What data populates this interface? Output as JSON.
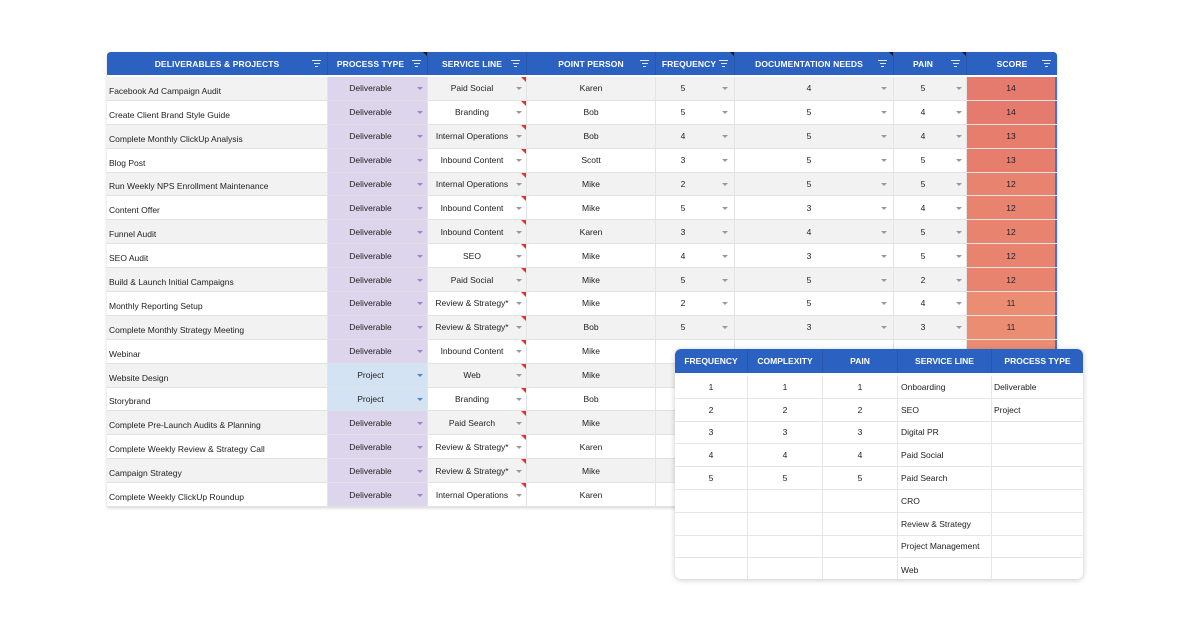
{
  "main_table": {
    "columns": [
      {
        "label": "DELIVERABLES & PROJECTS"
      },
      {
        "label": "PROCESS TYPE"
      },
      {
        "label": "SERVICE LINE"
      },
      {
        "label": "POINT PERSON"
      },
      {
        "label": "FREQUENCY"
      },
      {
        "label": "DOCUMENTATION NEEDS"
      },
      {
        "label": "PAIN"
      },
      {
        "label": "SCORE"
      }
    ],
    "rows": [
      {
        "name": "Facebook Ad Campaign Audit",
        "process_type": "Deliverable",
        "service_line": "Paid Social",
        "point_person": "Karen",
        "frequency": "5",
        "documentation_needs": "4",
        "pain": "5",
        "score": "14",
        "score_color": "#e57a6e"
      },
      {
        "name": "Create Client Brand Style Guide",
        "process_type": "Deliverable",
        "service_line": "Branding",
        "point_person": "Bob",
        "frequency": "5",
        "documentation_needs": "5",
        "pain": "4",
        "score": "14",
        "score_color": "#e57a6e"
      },
      {
        "name": "Complete Monthly ClickUp Analysis",
        "process_type": "Deliverable",
        "service_line": "Internal Operations",
        "point_person": "Bob",
        "frequency": "4",
        "documentation_needs": "5",
        "pain": "4",
        "score": "13",
        "score_color": "#e67d6d"
      },
      {
        "name": "Blog Post",
        "process_type": "Deliverable",
        "service_line": "Inbound Content",
        "point_person": "Scott",
        "frequency": "3",
        "documentation_needs": "5",
        "pain": "5",
        "score": "13",
        "score_color": "#e67d6d"
      },
      {
        "name": "Run Weekly NPS Enrollment Maintenance",
        "process_type": "Deliverable",
        "service_line": "Internal Operations",
        "point_person": "Mike",
        "frequency": "2",
        "documentation_needs": "5",
        "pain": "5",
        "score": "12",
        "score_color": "#e8836f"
      },
      {
        "name": "Content Offer",
        "process_type": "Deliverable",
        "service_line": "Inbound Content",
        "point_person": "Mike",
        "frequency": "5",
        "documentation_needs": "3",
        "pain": "4",
        "score": "12",
        "score_color": "#e8836f"
      },
      {
        "name": "Funnel Audit",
        "process_type": "Deliverable",
        "service_line": "Inbound Content",
        "point_person": "Karen",
        "frequency": "3",
        "documentation_needs": "4",
        "pain": "5",
        "score": "12",
        "score_color": "#e8836f"
      },
      {
        "name": "SEO Audit",
        "process_type": "Deliverable",
        "service_line": "SEO",
        "point_person": "Mike",
        "frequency": "4",
        "documentation_needs": "3",
        "pain": "5",
        "score": "12",
        "score_color": "#e8836f"
      },
      {
        "name": "Build & Launch Initial Campaigns",
        "process_type": "Deliverable",
        "service_line": "Paid Social",
        "point_person": "Mike",
        "frequency": "5",
        "documentation_needs": "5",
        "pain": "2",
        "score": "12",
        "score_color": "#e8836f"
      },
      {
        "name": "Monthly Reporting Setup",
        "process_type": "Deliverable",
        "service_line": "Review & Strategy*",
        "point_person": "Mike",
        "frequency": "2",
        "documentation_needs": "5",
        "pain": "4",
        "score": "11",
        "score_color": "#eb8d72"
      },
      {
        "name": "Complete Monthly Strategy Meeting",
        "process_type": "Deliverable",
        "service_line": "Review & Strategy*",
        "point_person": "Bob",
        "frequency": "5",
        "documentation_needs": "3",
        "pain": "3",
        "score": "11",
        "score_color": "#eb8d72"
      },
      {
        "name": "Webinar",
        "process_type": "Deliverable",
        "service_line": "Inbound Content",
        "point_person": "Mike",
        "frequency": "",
        "documentation_needs": "",
        "pain": "",
        "score": "",
        "score_color": "#eb8d72"
      },
      {
        "name": "Website Design",
        "process_type": "Project",
        "service_line": "Web",
        "point_person": "Mike",
        "frequency": "",
        "documentation_needs": "",
        "pain": "",
        "score": "",
        "score_color": "#ec9173"
      },
      {
        "name": "Storybrand",
        "process_type": "Project",
        "service_line": "Branding",
        "point_person": "Bob",
        "frequency": "",
        "documentation_needs": "",
        "pain": "",
        "score": "",
        "score_color": "#ec9173"
      },
      {
        "name": "Complete Pre-Launch Audits & Planning",
        "process_type": "Deliverable",
        "service_line": "Paid Search",
        "point_person": "Mike",
        "frequency": "",
        "documentation_needs": "",
        "pain": "",
        "score": "",
        "score_color": "#ed9574"
      },
      {
        "name": "Complete Weekly Review & Strategy Call",
        "process_type": "Deliverable",
        "service_line": "Review & Strategy*",
        "point_person": "Karen",
        "frequency": "",
        "documentation_needs": "",
        "pain": "",
        "score": "",
        "score_color": "#ed9574"
      },
      {
        "name": "Campaign Strategy",
        "process_type": "Deliverable",
        "service_line": "Review & Strategy*",
        "point_person": "Mike",
        "frequency": "",
        "documentation_needs": "",
        "pain": "",
        "score": "",
        "score_color": "#ee9975"
      },
      {
        "name": "Complete Weekly ClickUp Roundup",
        "process_type": "Deliverable",
        "service_line": "Internal Operations",
        "point_person": "Karen",
        "frequency": "",
        "documentation_needs": "",
        "pain": "",
        "score": "",
        "score_color": "#ee9975"
      }
    ]
  },
  "legend_table": {
    "columns": [
      {
        "label": "FREQUENCY"
      },
      {
        "label": "COMPLEXITY"
      },
      {
        "label": "PAIN"
      },
      {
        "label": "SERVICE LINE"
      },
      {
        "label": "PROCESS TYPE"
      }
    ],
    "rows": [
      {
        "frequency": "1",
        "complexity": "1",
        "pain": "1",
        "service_line": "Onboarding",
        "process_type": "Deliverable"
      },
      {
        "frequency": "2",
        "complexity": "2",
        "pain": "2",
        "service_line": "SEO",
        "process_type": "Project"
      },
      {
        "frequency": "3",
        "complexity": "3",
        "pain": "3",
        "service_line": "Digital PR",
        "process_type": ""
      },
      {
        "frequency": "4",
        "complexity": "4",
        "pain": "4",
        "service_line": "Paid Social",
        "process_type": ""
      },
      {
        "frequency": "5",
        "complexity": "5",
        "pain": "5",
        "service_line": "Paid Search",
        "process_type": ""
      },
      {
        "frequency": "",
        "complexity": "",
        "pain": "",
        "service_line": "CRO",
        "process_type": ""
      },
      {
        "frequency": "",
        "complexity": "",
        "pain": "",
        "service_line": "Review & Strategy",
        "process_type": ""
      },
      {
        "frequency": "",
        "complexity": "",
        "pain": "",
        "service_line": "Project Management",
        "process_type": ""
      },
      {
        "frequency": "",
        "complexity": "",
        "pain": "",
        "service_line": "Web",
        "process_type": ""
      }
    ]
  },
  "colors": {
    "header_blue": "#2b62c2",
    "deliverable_fill": "#ddd5ec",
    "project_fill": "#d3e3f4",
    "score_high": "#e57a6e",
    "score_low": "#ee9975",
    "comment_marker": "#e8302a"
  },
  "icons": {
    "filter": "filter-icon",
    "dropdown": "dropdown-arrow-icon",
    "comment": "comment-marker-icon"
  }
}
